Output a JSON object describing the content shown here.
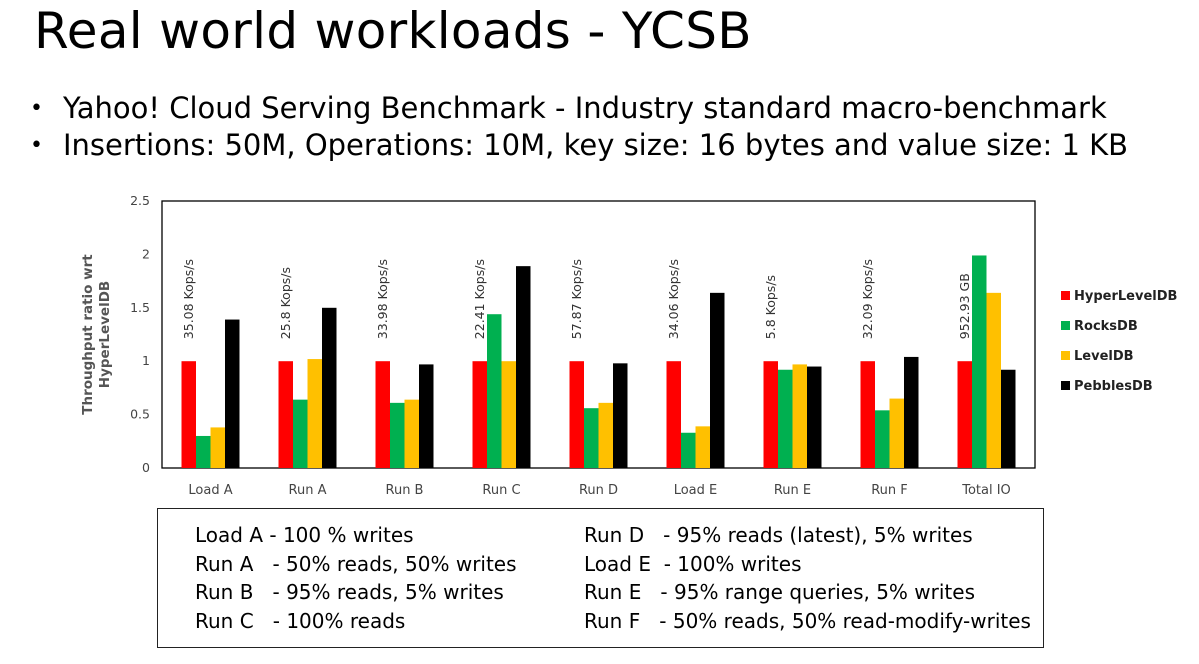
{
  "title": "Real world workloads - YCSB",
  "bullets": [
    "Yahoo! Cloud Serving Benchmark - Industry standard macro-benchmark",
    "Insertions: 50M, Operations: 10M, key size: 16 bytes and value size: 1 KB"
  ],
  "bullet_symbol": "•",
  "chart_data": {
    "type": "bar",
    "title": "",
    "xlabel": "",
    "ylabel": "Throughput ratio wrt HyperLevelDB",
    "ylabel_lines": [
      "Throughput ratio wrt",
      "HyperLevelDB"
    ],
    "ylim": [
      0,
      2.5
    ],
    "yticks": [
      "0",
      "0.5",
      "1",
      "1.5",
      "2",
      "2.5"
    ],
    "categories": [
      "Load A",
      "Run A",
      "Run B",
      "Run C",
      "Run D",
      "Load E",
      "Run E",
      "Run F",
      "Total IO"
    ],
    "annotations": [
      "35.08 Kops/s",
      "25.8 Kops/s",
      "33.98 Kops/s",
      "22.41 Kops/s",
      "57.87 Kops/s",
      "34.06 Kops/s",
      "5.8 Kops/s",
      "32.09 Kops/s",
      "952.93 GB"
    ],
    "series": [
      {
        "name": "HyperLevelDB",
        "color": "#ff0000",
        "values": [
          1,
          1,
          1,
          1,
          1,
          1,
          1,
          1,
          1
        ]
      },
      {
        "name": "RocksDB",
        "color": "#00b050",
        "values": [
          0.3,
          0.64,
          0.61,
          1.44,
          0.56,
          0.33,
          0.92,
          0.54,
          1.99
        ]
      },
      {
        "name": "LevelDB",
        "color": "#ffc000",
        "values": [
          0.38,
          1.02,
          0.64,
          1.0,
          0.61,
          0.39,
          0.97,
          0.65,
          1.64
        ]
      },
      {
        "name": "PebblesDB",
        "color": "#000000",
        "values": [
          1.39,
          1.5,
          0.97,
          1.89,
          0.98,
          1.64,
          0.95,
          1.04,
          0.92
        ]
      }
    ],
    "legend_position": "right"
  },
  "workload_legend": {
    "left": [
      "Load A - 100 % writes",
      "Run A   - 50% reads, 50% writes",
      "Run B   - 95% reads, 5% writes",
      "Run C   - 100% reads"
    ],
    "right": [
      "Run D   - 95% reads (latest), 5% writes",
      "Load E  - 100% writes",
      "Run E   - 95% range queries, 5% writes",
      "Run F   - 50% reads, 50% read-modify-writes"
    ]
  }
}
